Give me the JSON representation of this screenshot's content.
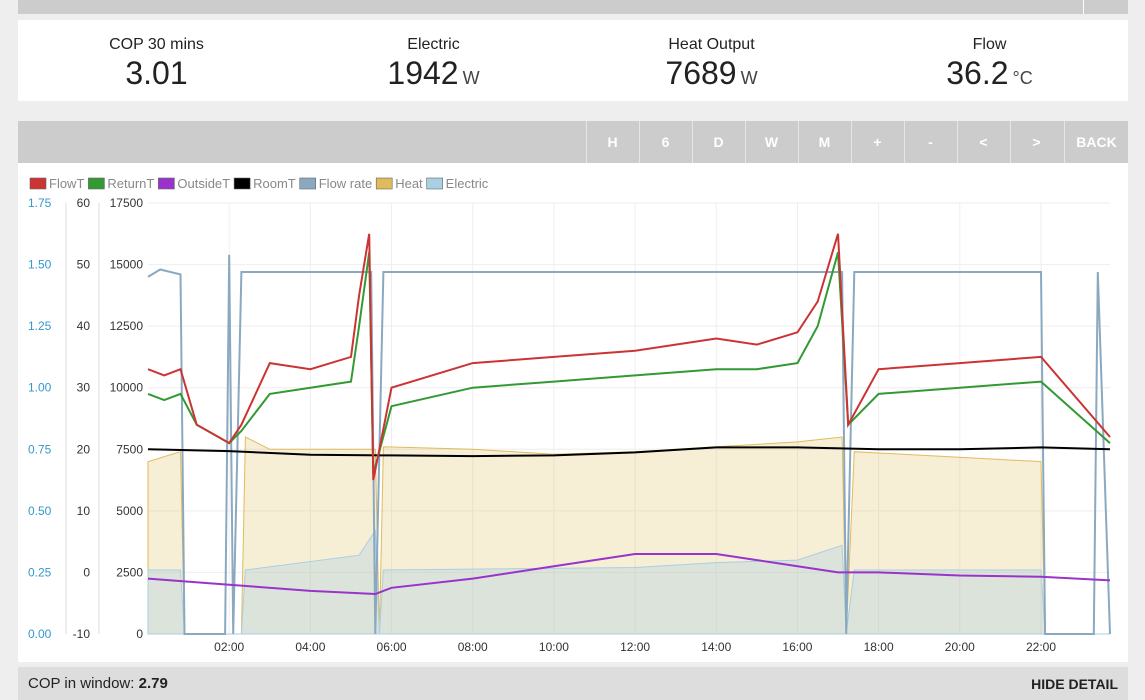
{
  "stats": [
    {
      "label": "COP 30 mins",
      "value": "3.01",
      "unit": ""
    },
    {
      "label": "Electric",
      "value": "1942",
      "unit": "W"
    },
    {
      "label": "Heat Output",
      "value": "7689",
      "unit": "W"
    },
    {
      "label": "Flow",
      "value": "36.2",
      "unit": "°C"
    }
  ],
  "toolbar": {
    "buttons": [
      "H",
      "6",
      "D",
      "W",
      "M",
      "+",
      "-",
      "<",
      ">",
      "BACK"
    ]
  },
  "footer": {
    "cop_label": "COP in window:",
    "cop_value": "2.79",
    "hide_label": "HIDE DETAIL"
  },
  "colors": {
    "flowT": "#cc3333",
    "returnT": "#339933",
    "outsideT": "#9933cc",
    "roomT": "#000000",
    "flowRate": "#8aa9c0",
    "heat": "#e0bb5c",
    "electric": "#a9cfe3",
    "cop_axis": "#3399cc"
  },
  "chart_data": {
    "type": "line",
    "legend": [
      {
        "name": "FlowT",
        "color": "#cc3333"
      },
      {
        "name": "ReturnT",
        "color": "#339933"
      },
      {
        "name": "OutsideT",
        "color": "#9933cc"
      },
      {
        "name": "RoomT",
        "color": "#000000"
      },
      {
        "name": "Flow rate",
        "color": "#8aa9c0"
      },
      {
        "name": "Heat",
        "color": "#e0bb5c"
      },
      {
        "name": "Electric",
        "color": "#a9cfe3"
      }
    ],
    "legend_position": "top-left",
    "grid": true,
    "x_ticks": [
      "02:00",
      "04:00",
      "06:00",
      "08:00",
      "10:00",
      "12:00",
      "14:00",
      "16:00",
      "18:00",
      "20:00",
      "22:00"
    ],
    "x_range_hours": [
      0,
      23.7
    ],
    "y_axes": {
      "cop": {
        "ticks": [
          "0.00",
          "0.25",
          "0.50",
          "0.75",
          "1.00",
          "1.25",
          "1.50",
          "1.75"
        ],
        "range": [
          0,
          1.75
        ]
      },
      "temp": {
        "ticks": [
          "-10",
          "0",
          "10",
          "20",
          "30",
          "40",
          "50",
          "60"
        ],
        "range": [
          -10,
          60
        ]
      },
      "power": {
        "ticks": [
          "0",
          "2500",
          "5000",
          "7500",
          "10000",
          "12500",
          "15000",
          "17500"
        ],
        "range": [
          0,
          17500
        ]
      }
    },
    "series": [
      {
        "name": "FlowT",
        "axis": "temp",
        "points": [
          [
            0,
            33
          ],
          [
            0.4,
            32
          ],
          [
            0.8,
            33
          ],
          [
            1.2,
            24
          ],
          [
            2,
            21
          ],
          [
            2.3,
            24
          ],
          [
            3,
            34
          ],
          [
            4,
            33
          ],
          [
            5,
            35
          ],
          [
            5.2,
            45
          ],
          [
            5.45,
            55
          ],
          [
            5.55,
            15
          ],
          [
            6,
            30
          ],
          [
            8,
            34
          ],
          [
            10,
            35
          ],
          [
            12,
            36
          ],
          [
            14,
            38
          ],
          [
            15,
            37
          ],
          [
            16,
            39
          ],
          [
            16.5,
            44
          ],
          [
            17,
            55
          ],
          [
            17.25,
            24
          ],
          [
            18,
            33
          ],
          [
            20,
            34
          ],
          [
            22,
            35
          ],
          [
            23.7,
            22
          ]
        ]
      },
      {
        "name": "ReturnT",
        "axis": "temp",
        "points": [
          [
            0,
            29
          ],
          [
            0.4,
            28
          ],
          [
            0.8,
            29
          ],
          [
            1.2,
            24
          ],
          [
            2,
            21
          ],
          [
            2.3,
            23
          ],
          [
            3,
            29
          ],
          [
            4,
            30
          ],
          [
            5,
            31
          ],
          [
            5.2,
            40
          ],
          [
            5.45,
            52
          ],
          [
            5.55,
            16
          ],
          [
            6,
            27
          ],
          [
            8,
            30
          ],
          [
            10,
            31
          ],
          [
            12,
            32
          ],
          [
            14,
            33
          ],
          [
            15,
            33
          ],
          [
            16,
            34
          ],
          [
            16.5,
            40
          ],
          [
            17,
            52
          ],
          [
            17.25,
            24
          ],
          [
            18,
            29
          ],
          [
            20,
            30
          ],
          [
            22,
            31
          ],
          [
            23.7,
            21
          ]
        ]
      },
      {
        "name": "OutsideT",
        "axis": "temp",
        "points": [
          [
            0,
            -1
          ],
          [
            2,
            -2
          ],
          [
            4,
            -3
          ],
          [
            5.6,
            -3.5
          ],
          [
            6,
            -2.5
          ],
          [
            8,
            -1
          ],
          [
            10,
            1
          ],
          [
            12,
            3
          ],
          [
            13,
            3
          ],
          [
            14,
            3
          ],
          [
            15,
            2
          ],
          [
            16,
            1
          ],
          [
            17,
            0
          ],
          [
            18,
            0
          ],
          [
            20,
            -0.5
          ],
          [
            22,
            -0.7
          ],
          [
            23.7,
            -1.3
          ]
        ]
      },
      {
        "name": "RoomT",
        "axis": "temp",
        "points": [
          [
            0,
            20
          ],
          [
            2,
            19.7
          ],
          [
            4,
            19.1
          ],
          [
            6,
            19
          ],
          [
            8,
            18.9
          ],
          [
            10,
            19
          ],
          [
            12,
            19.5
          ],
          [
            14,
            20.3
          ],
          [
            16,
            20.3
          ],
          [
            18,
            20
          ],
          [
            20,
            20
          ],
          [
            22,
            20.3
          ],
          [
            23.7,
            20
          ]
        ]
      },
      {
        "name": "Flow rate",
        "axis": "power",
        "points": [
          [
            0,
            14500
          ],
          [
            0.3,
            14800
          ],
          [
            0.8,
            14600
          ],
          [
            0.9,
            0
          ],
          [
            1.9,
            0
          ],
          [
            2,
            15400
          ],
          [
            2.1,
            0
          ],
          [
            2.3,
            14700
          ],
          [
            5.5,
            14700
          ],
          [
            5.6,
            0
          ],
          [
            5.8,
            14700
          ],
          [
            17.1,
            14700
          ],
          [
            17.2,
            0
          ],
          [
            17.4,
            14700
          ],
          [
            22,
            14700
          ],
          [
            22.1,
            0
          ],
          [
            23.3,
            0
          ],
          [
            23.4,
            14700
          ],
          [
            23.7,
            0
          ]
        ]
      },
      {
        "name": "Heat",
        "axis": "power",
        "points": [
          [
            0,
            7000
          ],
          [
            0.8,
            7400
          ],
          [
            0.9,
            0
          ],
          [
            2.3,
            0
          ],
          [
            2.4,
            8000
          ],
          [
            3,
            7500
          ],
          [
            5.6,
            7500
          ],
          [
            5.7,
            0
          ],
          [
            5.8,
            7600
          ],
          [
            8,
            7500
          ],
          [
            10,
            7300
          ],
          [
            12,
            7400
          ],
          [
            14,
            7600
          ],
          [
            16,
            7800
          ],
          [
            17.1,
            8000
          ],
          [
            17.2,
            0
          ],
          [
            17.4,
            7400
          ],
          [
            22,
            7000
          ],
          [
            22.1,
            0
          ],
          [
            23.7,
            0
          ]
        ]
      },
      {
        "name": "Electric",
        "axis": "power",
        "points": [
          [
            0,
            2600
          ],
          [
            0.8,
            2600
          ],
          [
            0.9,
            0
          ],
          [
            2.3,
            0
          ],
          [
            2.4,
            2600
          ],
          [
            5.2,
            3200
          ],
          [
            5.6,
            4200
          ],
          [
            5.7,
            0
          ],
          [
            5.8,
            2600
          ],
          [
            12,
            2700
          ],
          [
            14,
            2900
          ],
          [
            16,
            3000
          ],
          [
            17.1,
            3600
          ],
          [
            17.2,
            0
          ],
          [
            17.4,
            2600
          ],
          [
            22,
            2600
          ],
          [
            22.1,
            0
          ],
          [
            23.7,
            0
          ]
        ]
      }
    ]
  }
}
